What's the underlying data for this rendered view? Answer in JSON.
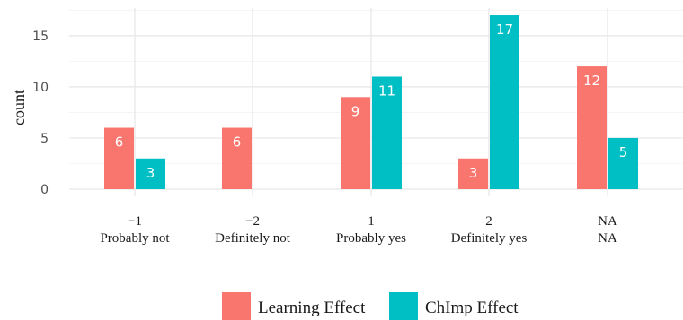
{
  "chart_data": {
    "type": "bar",
    "title": "",
    "xlabel": "",
    "ylabel": "count",
    "ylim": [
      0,
      17
    ],
    "yticks": [
      0,
      5,
      10,
      15
    ],
    "grid": true,
    "legend_position": "bottom",
    "categories": [
      {
        "code": "−1",
        "label": "Probably not"
      },
      {
        "code": "−2",
        "label": "Definitely not"
      },
      {
        "code": "1",
        "label": "Probably yes"
      },
      {
        "code": "2",
        "label": "Definitely yes"
      },
      {
        "code": "NA",
        "label": "NA"
      }
    ],
    "series": [
      {
        "name": "Learning Effect",
        "color": "#F8766D",
        "values": [
          6,
          6,
          9,
          3,
          12
        ]
      },
      {
        "name": "ChImp Effect",
        "color": "#00BFC4",
        "values": [
          3,
          null,
          11,
          17,
          5
        ]
      }
    ]
  }
}
